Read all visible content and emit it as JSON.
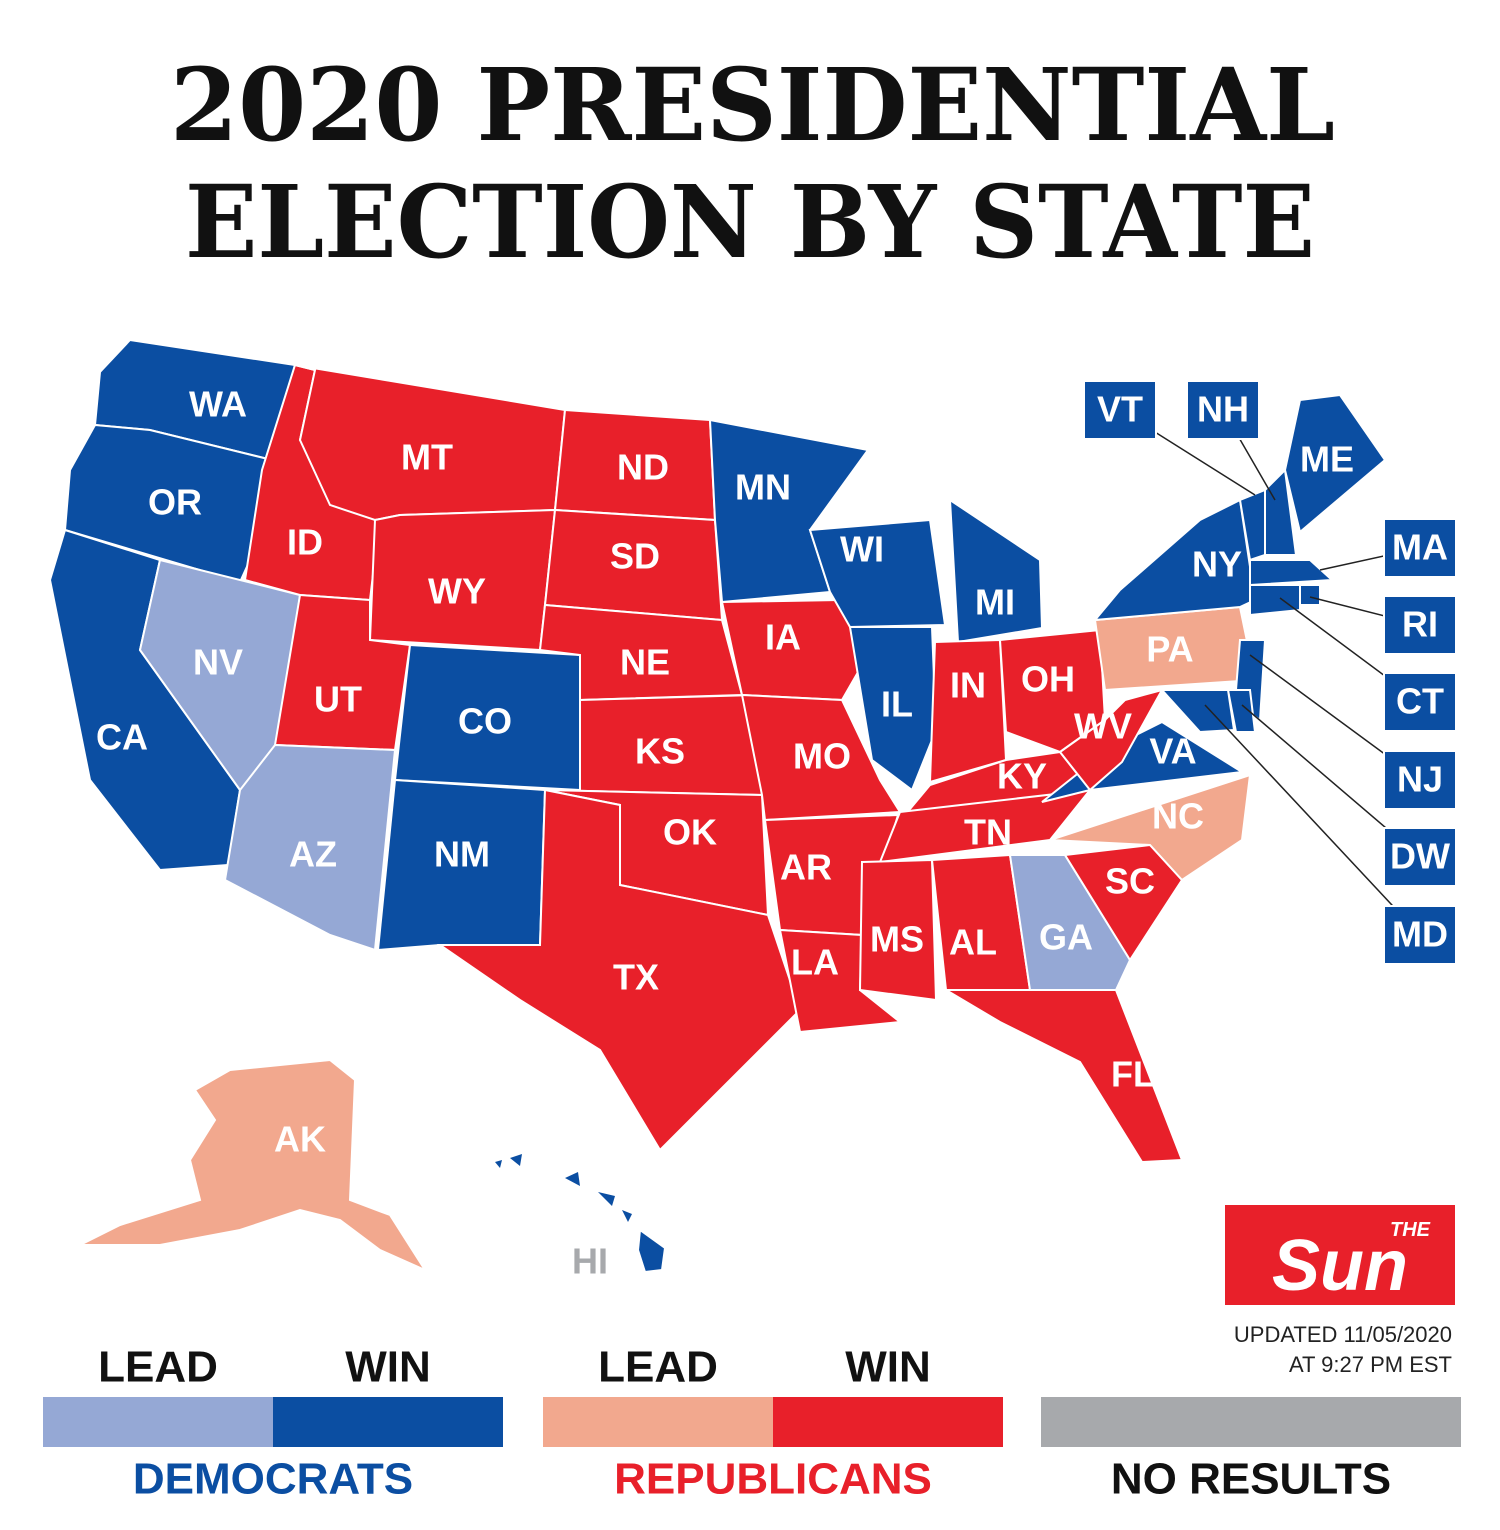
{
  "title": [
    "2020 PRESIDENTIAL",
    "ELECTION BY STATE"
  ],
  "map": {
    "states": [
      {
        "label": "WA",
        "color": "#0b4ea2"
      },
      {
        "label": "OR",
        "color": "#0b4ea2"
      },
      {
        "label": "CA",
        "color": "#0b4ea2"
      },
      {
        "label": "NV",
        "color": "#95a8d5"
      },
      {
        "label": "ID",
        "color": "#e8202a"
      },
      {
        "label": "MT",
        "color": "#e8202a"
      },
      {
        "label": "WY",
        "color": "#e8202a"
      },
      {
        "label": "UT",
        "color": "#e8202a"
      },
      {
        "label": "CO",
        "color": "#0b4ea2"
      },
      {
        "label": "AZ",
        "color": "#95a8d5"
      },
      {
        "label": "NM",
        "color": "#0b4ea2"
      },
      {
        "label": "ND",
        "color": "#e8202a"
      },
      {
        "label": "SD",
        "color": "#e8202a"
      },
      {
        "label": "NE",
        "color": "#e8202a"
      },
      {
        "label": "KS",
        "color": "#e8202a"
      },
      {
        "label": "OK",
        "color": "#e8202a"
      },
      {
        "label": "TX",
        "color": "#e8202a"
      },
      {
        "label": "MN",
        "color": "#0b4ea2"
      },
      {
        "label": "IA",
        "color": "#e8202a"
      },
      {
        "label": "MO",
        "color": "#e8202a"
      },
      {
        "label": "AR",
        "color": "#e8202a"
      },
      {
        "label": "LA",
        "color": "#e8202a"
      },
      {
        "label": "WI",
        "color": "#0b4ea2"
      },
      {
        "label": "IL",
        "color": "#0b4ea2"
      },
      {
        "label": "MI",
        "color": "#0b4ea2"
      },
      {
        "label": "IN",
        "color": "#e8202a"
      },
      {
        "label": "OH",
        "color": "#e8202a"
      },
      {
        "label": "KY",
        "color": "#e8202a"
      },
      {
        "label": "TN",
        "color": "#e8202a"
      },
      {
        "label": "MS",
        "color": "#e8202a"
      },
      {
        "label": "AL",
        "color": "#e8202a"
      },
      {
        "label": "GA",
        "color": "#95a8d5"
      },
      {
        "label": "FL",
        "color": "#e8202a"
      },
      {
        "label": "SC",
        "color": "#e8202a"
      },
      {
        "label": "NC",
        "color": "#f2a88e"
      },
      {
        "label": "VA",
        "color": "#0b4ea2"
      },
      {
        "label": "WV",
        "color": "#e8202a"
      },
      {
        "label": "PA",
        "color": "#f2a88e"
      },
      {
        "label": "NY",
        "color": "#0b4ea2"
      },
      {
        "label": "VT",
        "color": "#0b4ea2"
      },
      {
        "label": "NH",
        "color": "#0b4ea2"
      },
      {
        "label": "ME",
        "color": "#0b4ea2"
      },
      {
        "label": "MA",
        "color": "#0b4ea2"
      },
      {
        "label": "RI",
        "color": "#0b4ea2"
      },
      {
        "label": "CT",
        "color": "#0b4ea2"
      },
      {
        "label": "NJ",
        "color": "#0b4ea2"
      },
      {
        "label": "DW",
        "color": "#0b4ea2"
      },
      {
        "label": "MD",
        "color": "#0b4ea2"
      },
      {
        "label": "AK",
        "color": "#f2a88e"
      },
      {
        "label": "HI",
        "color": "#0b4ea2"
      }
    ]
  },
  "legend": [
    {
      "name": "DEMOCRATS",
      "text_color": "#0b4ea2",
      "parts": [
        {
          "label": "LEAD",
          "color": "#95a8d5"
        },
        {
          "label": "WIN",
          "color": "#0b4ea2"
        }
      ]
    },
    {
      "name": "REPUBLICANS",
      "text_color": "#e8202a",
      "parts": [
        {
          "label": "LEAD",
          "color": "#f2a88e"
        },
        {
          "label": "WIN",
          "color": "#e8202a"
        }
      ]
    },
    {
      "name": "NO RESULTS",
      "text_color": "#111111",
      "color": "#a7a9ac"
    }
  ],
  "logo": {
    "small": "THE",
    "big": "Sun"
  },
  "updated": [
    "UPDATED 11/05/2020",
    "AT 9:27 PM EST"
  ]
}
